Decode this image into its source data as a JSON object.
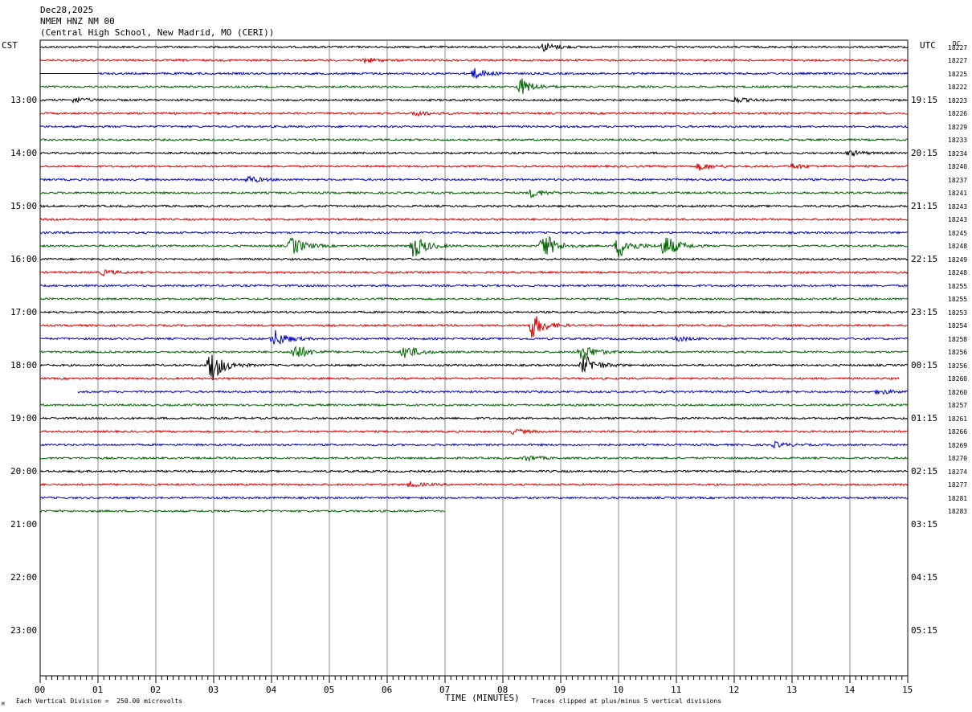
{
  "header": {
    "date": "Dec28,2025",
    "station": "NMEM HNZ NM 00",
    "location": "(Central High School, New Madrid, MO (CERI))"
  },
  "left_axis_title": "CST",
  "right_axis_title": "UTC",
  "dc_label": "DC",
  "footer": {
    "scale_note": "Each Vertical Division =  250.00 microvolts",
    "clip_note": "Traces clipped at plus/minus 5 vertical divisions",
    "mark": "M"
  },
  "chart_data": {
    "type": "line",
    "title": "NMEM HNZ NM 00",
    "xlabel": "TIME (MINUTES)",
    "xlim": [
      0,
      15
    ],
    "x_ticks": [
      "00",
      "01",
      "02",
      "03",
      "04",
      "05",
      "06",
      "07",
      "08",
      "09",
      "10",
      "11",
      "12",
      "13",
      "14",
      "15"
    ],
    "cst_hour_labels": [
      "13:00",
      "14:00",
      "15:00",
      "16:00",
      "17:00",
      "18:00",
      "19:00",
      "20:00",
      "21:00",
      "22:00",
      "23:00"
    ],
    "utc_hour_labels": [
      "19:15",
      "20:15",
      "21:15",
      "22:15",
      "23:15",
      "00:15",
      "01:15",
      "02:15",
      "03:15",
      "04:15",
      "05:15"
    ],
    "trace_colors": [
      "#000000",
      "#dd0000",
      "#0000cc",
      "#006400"
    ],
    "dc_offsets": [
      "18227",
      "18227",
      "18225",
      "18222",
      "18223",
      "18226",
      "18229",
      "18233",
      "18234",
      "18240",
      "18237",
      "18241",
      "18243",
      "18243",
      "18245",
      "18248",
      "18249",
      "18248",
      "18255",
      "18255",
      "18253",
      "18254",
      "18258",
      "18256",
      "18256",
      "18260",
      "18260",
      "18257",
      "18261",
      "18266",
      "18269",
      "18270",
      "18274",
      "18277",
      "18281",
      "18283"
    ],
    "trace_extent_minutes": [
      {
        "trace": 3,
        "start": 0,
        "end": 15,
        "flat_until": 1
      },
      {
        "trace": 27,
        "start": 0.65,
        "end": 15
      },
      {
        "trace": 26,
        "start": 0,
        "end": 14.85
      },
      {
        "trace": 36,
        "start": 0,
        "end": 7
      }
    ],
    "events": [
      {
        "trace": 1,
        "minute": 8.7,
        "amplitude": 0.5
      },
      {
        "trace": 2,
        "minute": 5.6,
        "amplitude": 0.3
      },
      {
        "trace": 3,
        "minute": 7.5,
        "amplitude": 0.6
      },
      {
        "trace": 4,
        "minute": 8.3,
        "amplitude": 1.0
      },
      {
        "trace": 5,
        "minute": 0.6,
        "amplitude": 0.3
      },
      {
        "trace": 5,
        "minute": 12.0,
        "amplitude": 0.3
      },
      {
        "trace": 6,
        "minute": 6.5,
        "amplitude": 0.3
      },
      {
        "trace": 9,
        "minute": 14.0,
        "amplitude": 0.3
      },
      {
        "trace": 10,
        "minute": 11.4,
        "amplitude": 0.4
      },
      {
        "trace": 10,
        "minute": 13.0,
        "amplitude": 0.3
      },
      {
        "trace": 11,
        "minute": 3.6,
        "amplitude": 0.4
      },
      {
        "trace": 12,
        "minute": 8.5,
        "amplitude": 0.5
      },
      {
        "trace": 16,
        "minute": 4.35,
        "amplitude": 1.1
      },
      {
        "trace": 16,
        "minute": 6.45,
        "amplitude": 1.4
      },
      {
        "trace": 16,
        "minute": 8.7,
        "amplitude": 1.6
      },
      {
        "trace": 16,
        "minute": 10.0,
        "amplitude": 1.4
      },
      {
        "trace": 16,
        "minute": 10.8,
        "amplitude": 1.4
      },
      {
        "trace": 18,
        "minute": 1.1,
        "amplitude": 0.3
      },
      {
        "trace": 22,
        "minute": 8.5,
        "amplitude": 1.5
      },
      {
        "trace": 23,
        "minute": 4.05,
        "amplitude": 1.0
      },
      {
        "trace": 23,
        "minute": 11.0,
        "amplitude": 0.3
      },
      {
        "trace": 24,
        "minute": 4.4,
        "amplitude": 1.0
      },
      {
        "trace": 24,
        "minute": 6.3,
        "amplitude": 0.9
      },
      {
        "trace": 24,
        "minute": 9.35,
        "amplitude": 1.1
      },
      {
        "trace": 25,
        "minute": 2.95,
        "amplitude": 2.0
      },
      {
        "trace": 25,
        "minute": 9.4,
        "amplitude": 1.2
      },
      {
        "trace": 27,
        "minute": 14.5,
        "amplitude": 0.3
      },
      {
        "trace": 30,
        "minute": 8.2,
        "amplitude": 0.3
      },
      {
        "trace": 31,
        "minute": 12.7,
        "amplitude": 0.3
      },
      {
        "trace": 32,
        "minute": 8.4,
        "amplitude": 0.3
      },
      {
        "trace": 34,
        "minute": 6.4,
        "amplitude": 0.3
      }
    ]
  }
}
